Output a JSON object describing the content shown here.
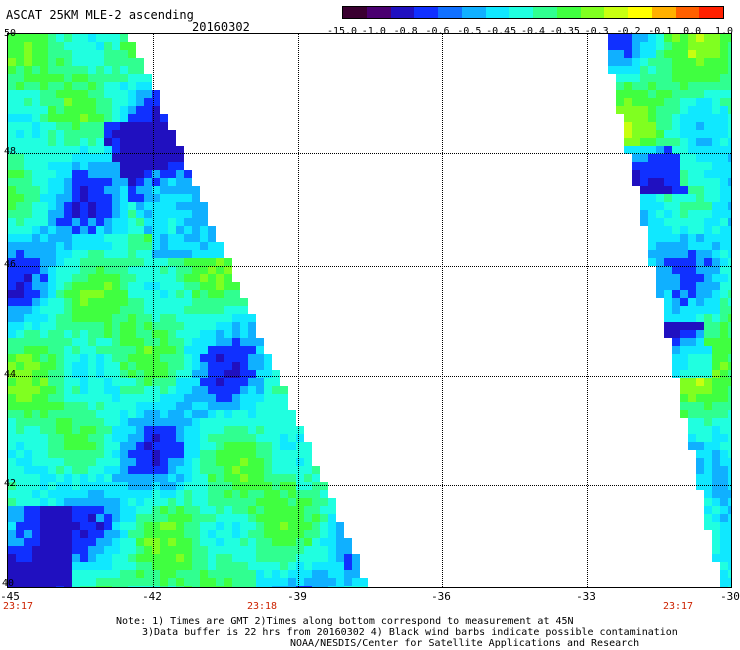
{
  "header": {
    "title": "ASCAT 25KM MLE-2 ascending",
    "date": "20160302"
  },
  "colorbar": {
    "colors": [
      "#3a0030",
      "#4a0070",
      "#2010c0",
      "#1030ff",
      "#1070ff",
      "#10b0ff",
      "#10e8ff",
      "#20ffe0",
      "#30ff90",
      "#40ff40",
      "#80ff20",
      "#c8ff10",
      "#ffff00",
      "#ffb000",
      "#ff6000",
      "#ff2000"
    ],
    "tick_labels": [
      "-15.0",
      "-1.0",
      "-0.8",
      "-0.6",
      "-0.5",
      "-0.45",
      "-0.4",
      "-0.35",
      "-0.3",
      "-0.2",
      "-0.1",
      "0.0",
      "1.0"
    ]
  },
  "map": {
    "lat_labels": [
      "50",
      "48",
      "46",
      "44",
      "42",
      "40"
    ],
    "lon_labels": [
      "-45",
      "-42",
      "-39",
      "-36",
      "-33",
      "-30"
    ],
    "time_labels": [
      "23:17",
      "23:18",
      "23:17"
    ]
  },
  "footer": {
    "line1": "Note: 1) Times are GMT 2)Times along bottom correspond to measurement at 45N",
    "line2": "3)Data buffer is 22 hrs from 20160302 4) Black wind barbs indicate possible contamination",
    "line3": "NOAA/NESDIS/Center for Satellite Applications and Research"
  }
}
